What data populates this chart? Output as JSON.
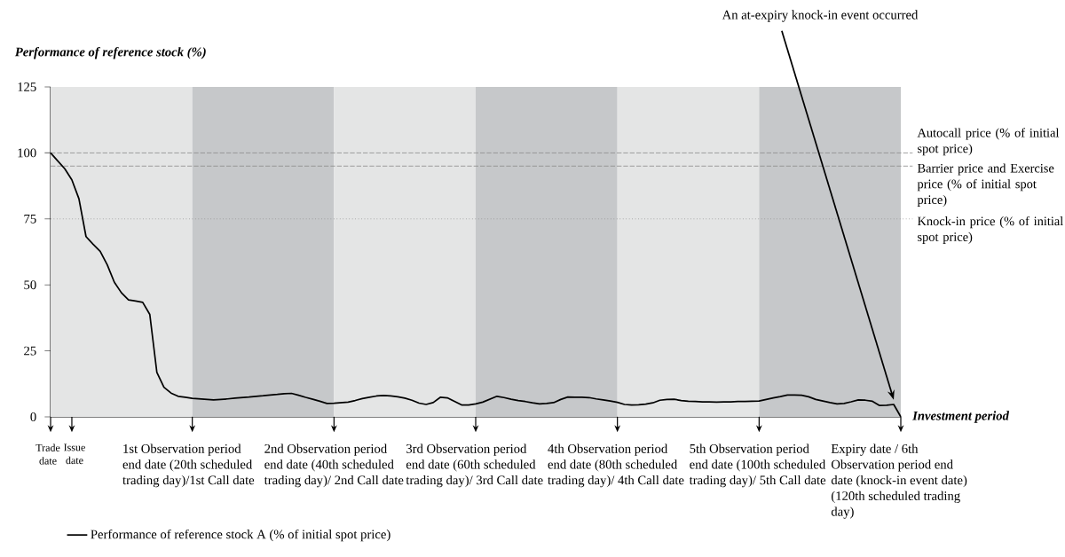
{
  "chart_data": {
    "type": "line",
    "ylabel": "Performance of reference stock (%)",
    "xlabel": "Investment period",
    "ylim": [
      0,
      125
    ],
    "yticks": [
      0,
      25,
      50,
      75,
      100,
      125
    ],
    "categories": [
      "Trade date",
      null,
      null,
      "Issue date",
      null,
      null,
      null,
      null,
      null,
      null,
      null,
      null,
      null,
      null,
      null,
      null,
      null,
      null,
      null,
      null,
      "1st Observation period end date (20th scheduled trading day)/1st Call date",
      null,
      null,
      null,
      null,
      null,
      null,
      null,
      null,
      null,
      null,
      null,
      null,
      null,
      null,
      null,
      null,
      null,
      null,
      null,
      "2nd Observation period end date (40th scheduled trading day)/ 2nd Call date",
      null,
      null,
      null,
      null,
      null,
      null,
      null,
      null,
      null,
      null,
      null,
      null,
      null,
      null,
      null,
      null,
      null,
      null,
      null,
      "3rd Observation period end date (60th scheduled trading day)/ 3rd Call date",
      null,
      null,
      null,
      null,
      null,
      null,
      null,
      null,
      null,
      null,
      null,
      null,
      null,
      null,
      null,
      null,
      null,
      null,
      null,
      "4th Observation period end date (80th scheduled trading day)/ 4th Call date",
      null,
      null,
      null,
      null,
      null,
      null,
      null,
      null,
      null,
      null,
      null,
      null,
      null,
      null,
      null,
      null,
      null,
      null,
      null,
      "5th Observation period end date (100th scheduled trading day)/ 5th Call date",
      null,
      null,
      null,
      null,
      null,
      null,
      null,
      null,
      null,
      null,
      null,
      null,
      null,
      null,
      null,
      null,
      null,
      null,
      null,
      "Expiry date / 6th Observation period end date (knock-in event date) (120th scheduled trading day)"
    ],
    "bands": [
      {
        "axis": "x",
        "from": "Trade date",
        "to": "1st Observation period end date (20th scheduled trading day)/1st Call date",
        "color": "#e4e5e5"
      },
      {
        "axis": "x",
        "from": "1st Observation period end date (20th scheduled trading day)/1st Call date",
        "to": "2nd Observation period end date (40th scheduled trading day)/ 2nd Call date",
        "color": "#c6c8ca"
      },
      {
        "axis": "x",
        "from": "2nd Observation period end date (40th scheduled trading day)/ 2nd Call date",
        "to": "3rd Observation period end date (60th scheduled trading day)/ 3rd Call date",
        "color": "#e4e5e5"
      },
      {
        "axis": "x",
        "from": "3rd Observation period end date (60th scheduled trading day)/ 3rd Call date",
        "to": "4th Observation period end date (80th scheduled trading day)/ 4th Call date",
        "color": "#c6c8ca"
      },
      {
        "axis": "x",
        "from": "4th Observation period end date (80th scheduled trading day)/ 4th Call date",
        "to": "5th Observation period end date (100th scheduled trading day)/ 5th Call date",
        "color": "#e4e5e5"
      },
      {
        "axis": "x",
        "from": "5th Observation period end date (100th scheduled trading day)/ 5th Call date",
        "to": "Expiry date / 6th Observation period end date (knock-in event date) (120th scheduled trading day)",
        "color": "#c6c8ca"
      }
    ],
    "ref_lines": [
      {
        "axis": "y",
        "value": 100,
        "label": "Autocall price (% of initial spot price)",
        "color": "#8a8a8a",
        "line_style": "dashed"
      },
      {
        "axis": "y",
        "value": 95,
        "label": "Barrier price and Exercise price (% of initial spot price)",
        "color": "#8a8a8a",
        "line_style": "dashed"
      },
      {
        "axis": "y",
        "value": 75,
        "label": "Knock-in price (% of initial spot price)",
        "color": "#8a8a8a",
        "line_style": "dotted"
      }
    ],
    "annotations": [
      "An at-expiry knock-in event occurred"
    ],
    "legend": "bottom",
    "series": [
      {
        "name": "Performance of reference stock A (% of initial spot price)",
        "color": "#000000",
        "values": [
          100,
          97,
          94,
          89.8,
          82.6,
          68.3,
          65.4,
          62.7,
          57.6,
          51,
          47,
          44.3,
          43.9,
          43.4,
          38.8,
          16.8,
          11.2,
          9,
          7.8,
          7.4,
          7.0,
          6.8,
          6.6,
          6.4,
          6.6,
          6.8,
          7.1,
          7.3,
          7.5,
          7.8,
          8.0,
          8.3,
          8.5,
          8.8,
          8.9,
          8.2,
          7.4,
          6.7,
          5.9,
          5.1,
          5.2,
          5.4,
          5.6,
          6.2,
          6.9,
          7.4,
          7.9,
          8.1,
          7.9,
          7.6,
          7.1,
          6.3,
          5.2,
          4.7,
          5.4,
          7.4,
          7.2,
          5.9,
          4.5,
          4.5,
          4.9,
          5.6,
          6.7,
          7.8,
          7.3,
          6.7,
          6.2,
          5.8,
          5.3,
          4.9,
          5.1,
          5.4,
          6.6,
          7.5,
          7.4,
          7.4,
          7.3,
          6.8,
          6.4,
          6.0,
          5.5,
          4.7,
          4.5,
          4.6,
          4.8,
          5.3,
          6.3,
          6.6,
          6.7,
          6.2,
          5.9,
          5.8,
          5.7,
          5.7,
          5.6,
          5.7,
          5.7,
          5.8,
          5.8,
          5.9,
          6.0,
          6.6,
          7.2,
          7.7,
          8.3,
          8.3,
          8.2,
          7.6,
          6.6,
          6.0,
          5.4,
          4.9,
          5.1,
          5.7,
          6.4,
          6.3,
          5.9,
          4.3,
          4.4,
          4.7,
          0
        ]
      }
    ]
  }
}
